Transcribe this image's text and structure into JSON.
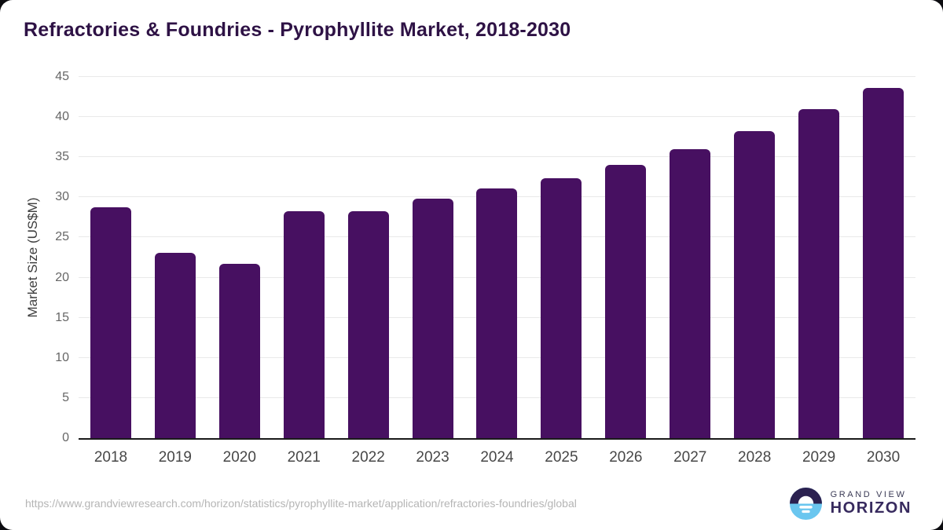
{
  "title": "Refractories & Foundries - Pyrophyllite Market, 2018-2030",
  "chart_data": {
    "type": "bar",
    "title": "Refractories & Foundries - Pyrophyllite Market, 2018-2030",
    "categories": [
      "2018",
      "2019",
      "2020",
      "2021",
      "2022",
      "2023",
      "2024",
      "2025",
      "2026",
      "2027",
      "2028",
      "2029",
      "2030"
    ],
    "values": [
      28.8,
      23.1,
      21.7,
      28.3,
      28.3,
      29.8,
      31.1,
      32.4,
      34.0,
      36.0,
      38.3,
      41.0,
      43.6
    ],
    "xlabel": "",
    "ylabel": "Market Size (US$M)",
    "ylim": [
      0,
      45
    ],
    "ytick_step": 5,
    "yticks": [
      "0",
      "5",
      "10",
      "15",
      "20",
      "25",
      "30",
      "35",
      "40",
      "45"
    ],
    "grid": "horizontal",
    "legend": "none",
    "bar_color": "#471061"
  },
  "footer": {
    "source_url": "https://www.grandviewresearch.com/horizon/statistics/pyrophyllite-market/application/refractories-foundries/global"
  },
  "logo": {
    "line1": "GRAND VIEW",
    "line2": "HORIZON",
    "icon": "sunrise-horizon-circle-icon"
  },
  "colors": {
    "title": "#2e1245",
    "bar": "#471061",
    "axis_line": "#1a1a1a",
    "gridline": "#e9e9e9",
    "ytick_label": "#666666",
    "xtick_label": "#474747",
    "url_text": "#b5b5b5",
    "logo_navy": "#2b2150",
    "logo_blue": "#6ac6ef"
  }
}
